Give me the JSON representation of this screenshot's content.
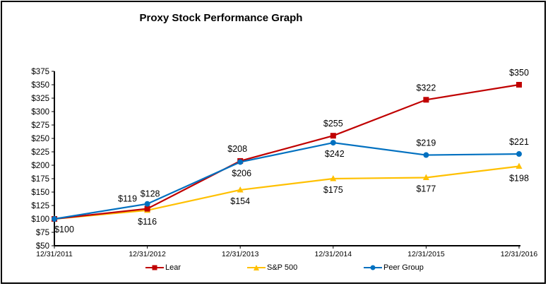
{
  "chart_data": {
    "type": "line",
    "title": "Proxy Stock Performance Graph",
    "xlabel": "",
    "ylabel": "",
    "categories": [
      "12/31/2011",
      "12/31/2012",
      "12/31/2013",
      "12/31/2014",
      "12/31/2015",
      "12/31/2016"
    ],
    "ylim": [
      50,
      375
    ],
    "ytick_step": 25,
    "ytick_format": "$",
    "grid": false,
    "legend": "bottom",
    "series": [
      {
        "name": "Lear",
        "values": [
          100,
          119,
          208,
          255,
          322,
          350
        ],
        "color": "#C00000",
        "marker": "square"
      },
      {
        "name": "S&P 500",
        "values": [
          100,
          116,
          154,
          175,
          177,
          198
        ],
        "color": "#FFC000",
        "marker": "triangle"
      },
      {
        "name": "Peer Group",
        "values": [
          100,
          128,
          206,
          242,
          219,
          221
        ],
        "color": "#0070C0",
        "marker": "circle"
      }
    ]
  }
}
